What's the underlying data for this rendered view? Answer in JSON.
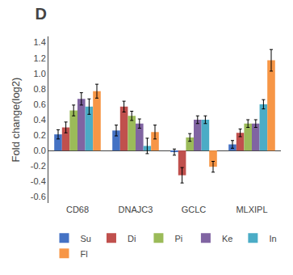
{
  "chart_data": {
    "type": "bar",
    "title": "D",
    "ylabel": "Fold change(log2)",
    "categories": [
      "CD68",
      "DNAJC3",
      "GCLC",
      "MLXIPL"
    ],
    "series": [
      {
        "name": "Su",
        "color": "#4472C4",
        "values": [
          0.21,
          0.26,
          -0.02,
          0.08
        ],
        "errors": [
          0.06,
          0.07,
          0.04,
          0.05
        ]
      },
      {
        "name": "Di",
        "color": "#C0504D",
        "values": [
          0.3,
          0.57,
          -0.32,
          0.23
        ],
        "errors": [
          0.07,
          0.07,
          0.1,
          0.05
        ]
      },
      {
        "name": "Pi",
        "color": "#9BBB59",
        "values": [
          0.52,
          0.45,
          0.17,
          0.35
        ],
        "errors": [
          0.07,
          0.06,
          0.05,
          0.05
        ]
      },
      {
        "name": "Ke",
        "color": "#8064A2",
        "values": [
          0.67,
          0.35,
          0.4,
          0.35
        ],
        "errors": [
          0.08,
          0.06,
          0.05,
          0.05
        ]
      },
      {
        "name": "In",
        "color": "#4BACC6",
        "values": [
          0.57,
          0.06,
          0.4,
          0.6
        ],
        "errors": [
          0.1,
          0.1,
          0.05,
          0.06
        ]
      },
      {
        "name": "Fl",
        "color": "#F79646",
        "values": [
          0.77,
          0.24,
          -0.21,
          1.17
        ],
        "errors": [
          0.09,
          0.09,
          0.07,
          0.14
        ]
      }
    ],
    "ylim": [
      -0.68,
      1.48
    ],
    "yticks": [
      -0.6,
      -0.4,
      -0.2,
      {
        "value": 0.0,
        "label": "0.0"
      },
      0.2,
      0.4,
      0.6,
      0.8,
      {
        "value": 1.0,
        "label": "1.0"
      },
      1.2,
      1.4
    ],
    "grid": false,
    "legend": "bottom"
  }
}
